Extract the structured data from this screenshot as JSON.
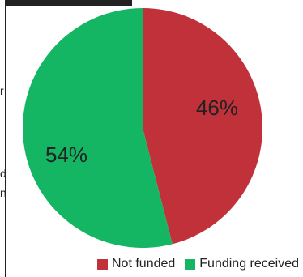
{
  "chart_data": {
    "type": "pie",
    "title": "",
    "slices": [
      {
        "label": "Not funded",
        "value": 46,
        "display": "46%",
        "color": "#C0313A"
      },
      {
        "label": "Funding received",
        "value": 54,
        "display": "54%",
        "color": "#14B563"
      }
    ],
    "legend": {
      "position": "bottom",
      "items": [
        {
          "label": "Not funded",
          "color": "#C0313A"
        },
        {
          "label": "Funding received",
          "color": "#14B563"
        }
      ]
    }
  },
  "left_crop_text": [
    "r",
    "d",
    "n"
  ]
}
